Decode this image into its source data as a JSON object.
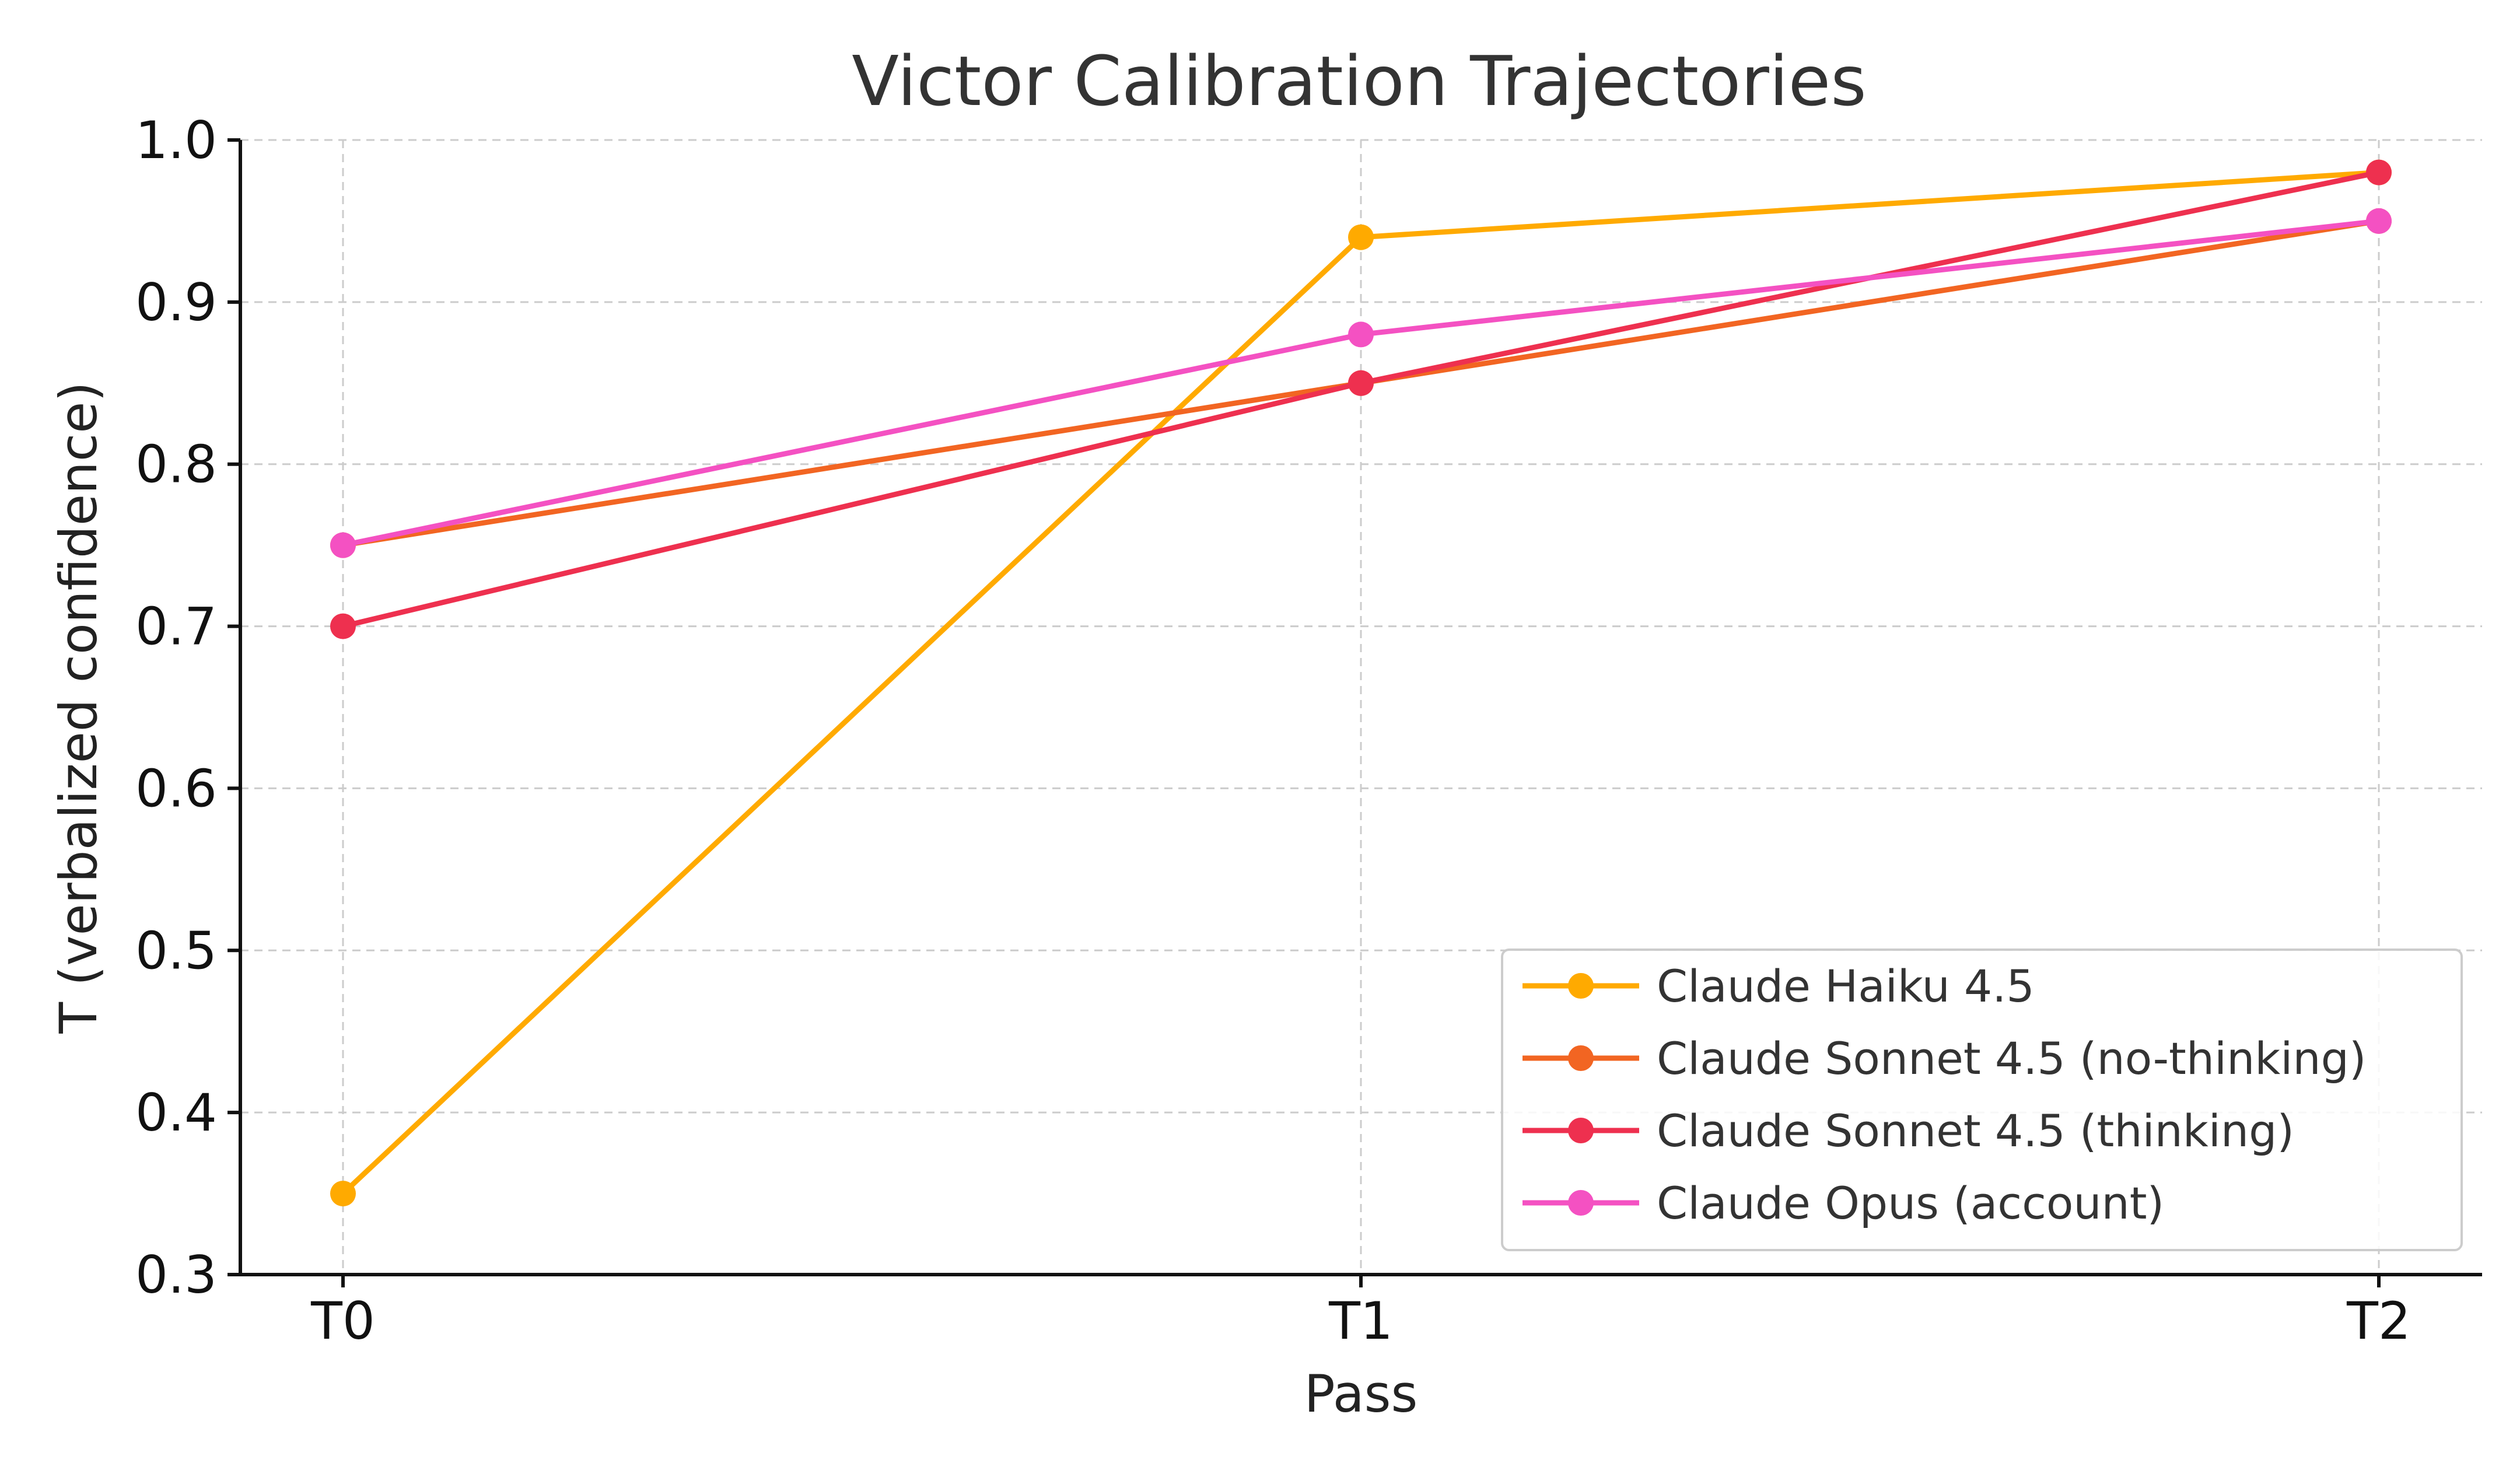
{
  "chart_data": {
    "type": "line",
    "title": "Victor Calibration Trajectories",
    "xlabel": "Pass",
    "ylabel": "T (verbalized confidence)",
    "categories": [
      "T0",
      "T1",
      "T2"
    ],
    "ylim": [
      0.3,
      1.0
    ],
    "yticks": [
      "0.3",
      "0.4",
      "0.5",
      "0.6",
      "0.7",
      "0.8",
      "0.9",
      "1.0"
    ],
    "grid": true,
    "legend_position": "lower-right",
    "series": [
      {
        "name": "Claude Haiku 4.5",
        "color": "#FFAA00",
        "values": [
          0.35,
          0.94,
          0.98
        ]
      },
      {
        "name": "Claude Sonnet 4.5 (no-thinking)",
        "color": "#F26522",
        "values": [
          0.75,
          0.85,
          0.95
        ]
      },
      {
        "name": "Claude Sonnet 4.5 (thinking)",
        "color": "#EE304F",
        "values": [
          0.7,
          0.85,
          0.98
        ]
      },
      {
        "name": "Claude Opus (account)",
        "color": "#F451C2",
        "values": [
          0.75,
          0.88,
          0.95
        ]
      }
    ]
  }
}
